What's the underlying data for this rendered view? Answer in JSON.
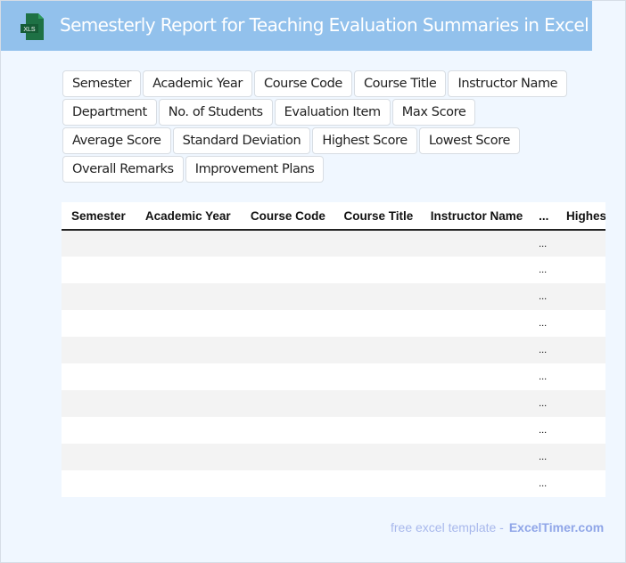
{
  "header": {
    "title": "Semesterly Report for Teaching Evaluation Summaries in Excel",
    "icon": "xls-file-icon",
    "icon_label": "XLS",
    "color": "#92c1ec"
  },
  "tags": [
    "Semester",
    "Academic Year",
    "Course Code",
    "Course Title",
    "Instructor Name",
    "Department",
    "No. of Students",
    "Evaluation Item",
    "Max Score",
    "Average Score",
    "Standard Deviation",
    "Highest Score",
    "Lowest Score",
    "Overall Remarks",
    "Improvement Plans"
  ],
  "table": {
    "columns": [
      "Semester",
      "Academic Year",
      "Course Code",
      "Course Title",
      "Instructor Name",
      "...",
      "Highest Score"
    ],
    "rows": [
      "...",
      "...",
      "...",
      "...",
      "...",
      "...",
      "...",
      "...",
      "...",
      "..."
    ]
  },
  "footer": {
    "text": "free excel template -",
    "brand": "ExcelTimer.com"
  }
}
